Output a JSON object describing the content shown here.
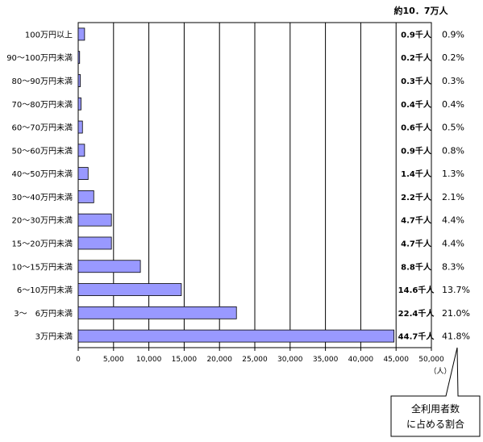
{
  "chart_data": {
    "type": "bar",
    "orientation": "horizontal",
    "total_label": "約10．7万人",
    "categories": [
      "100万円以上",
      "90～100万円未満",
      "80～90万円未満",
      "70～80万円未満",
      "60～70万円未満",
      "50～60万円未満",
      "40～50万円未満",
      "30～40万円未満",
      "20～30万円未満",
      "15～20万円未満",
      "10～15万円未満",
      "6～10万円未満",
      "3～　6万円未満",
      "3万円未満"
    ],
    "values": [
      900,
      200,
      300,
      400,
      600,
      900,
      1400,
      2200,
      4700,
      4700,
      8800,
      14600,
      22400,
      44700
    ],
    "count_labels": [
      "0.9千人",
      "0.2千人",
      "0.3千人",
      "0.4千人",
      "0.6千人",
      "0.9千人",
      "1.4千人",
      "2.2千人",
      "4.7千人",
      "4.7千人",
      "8.8千人",
      "14.6千人",
      "22.4千人",
      "44.7千人"
    ],
    "percent_labels": [
      "0.9%",
      "0.2%",
      "0.3%",
      "0.4%",
      "0.5%",
      "0.8%",
      "1.3%",
      "2.1%",
      "4.4%",
      "4.4%",
      "8.3%",
      "13.7%",
      "21.0%",
      "41.8%"
    ],
    "xlim": [
      0,
      50000
    ],
    "xticks": [
      0,
      5000,
      10000,
      15000,
      20000,
      25000,
      30000,
      35000,
      40000,
      45000,
      50000
    ],
    "xtick_labels": [
      "0",
      "5,000",
      "10,000",
      "15,000",
      "20,000",
      "25,000",
      "30,000",
      "35,000",
      "40,000",
      "45,000",
      "50,000"
    ],
    "xlabel": "（人）",
    "grid": "vertical",
    "bar_color": "#9999ff",
    "callout": [
      "全利用者数",
      "に占める割合"
    ]
  }
}
